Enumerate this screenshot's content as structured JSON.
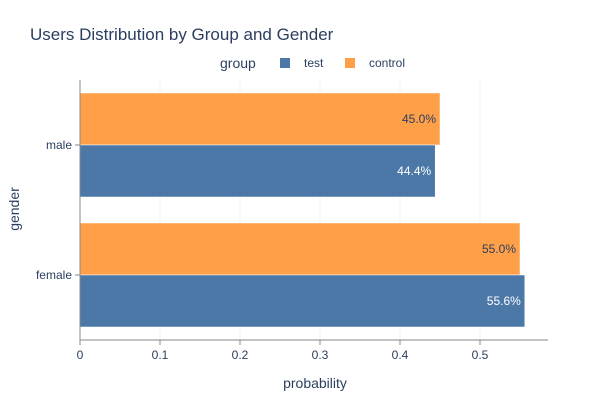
{
  "chart_data": {
    "type": "bar",
    "orientation": "horizontal",
    "title": "Users Distribution by Group and Gender",
    "xlabel": "probability",
    "ylabel": "gender",
    "categories": [
      "male",
      "female"
    ],
    "xlim": [
      0,
      0.585
    ],
    "x_ticks": [
      "0",
      "0.1",
      "0.2",
      "0.3",
      "0.4",
      "0.5"
    ],
    "x_tick_values": [
      0,
      0.1,
      0.2,
      0.3,
      0.4,
      0.5
    ],
    "grid": true,
    "legend": {
      "title": "group",
      "position": "top-center"
    },
    "series": [
      {
        "name": "test",
        "color": "#4c78a8",
        "values": [
          0.444,
          0.556
        ],
        "labels": [
          "44.4%",
          "55.6%"
        ],
        "label_color": "#ffffff"
      },
      {
        "name": "control",
        "color": "#ff9f47",
        "values": [
          0.45,
          0.55
        ],
        "labels": [
          "45.0%",
          "55.0%"
        ],
        "label_color": "#2a3f5f"
      }
    ]
  }
}
